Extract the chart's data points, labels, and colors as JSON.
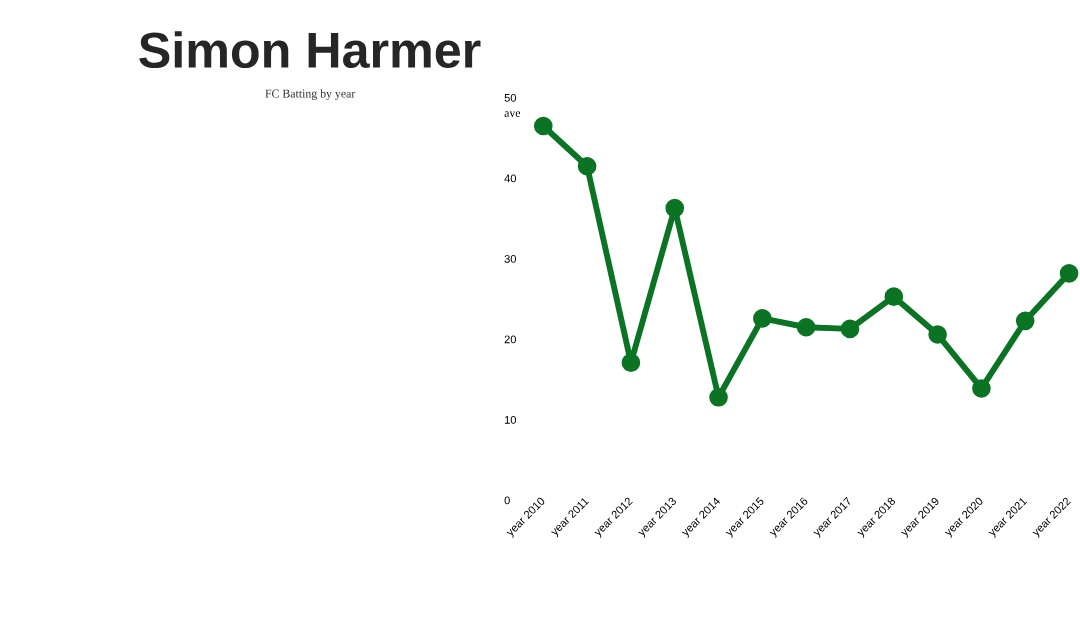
{
  "chart_data": {
    "type": "line",
    "title": "Simon Harmer",
    "subtitle": "FC Batting by year",
    "ylabel": "ave",
    "categories": [
      "year 2010",
      "year 2011",
      "year 2012",
      "year 2013",
      "year 2014",
      "year 2015",
      "year 2016",
      "year 2017",
      "year 2018",
      "year 2019",
      "year 2020",
      "year 2021",
      "year 2022"
    ],
    "values": [
      46.5,
      41.5,
      17.1,
      36.3,
      12.8,
      22.6,
      21.5,
      21.3,
      25.3,
      20.6,
      13.9,
      22.3,
      28.2
    ],
    "color": "#0a7324",
    "ylim": [
      0,
      50
    ],
    "yticks": [
      0,
      10,
      20,
      30,
      40,
      50
    ],
    "marker": "circle",
    "line_style": "solid"
  }
}
